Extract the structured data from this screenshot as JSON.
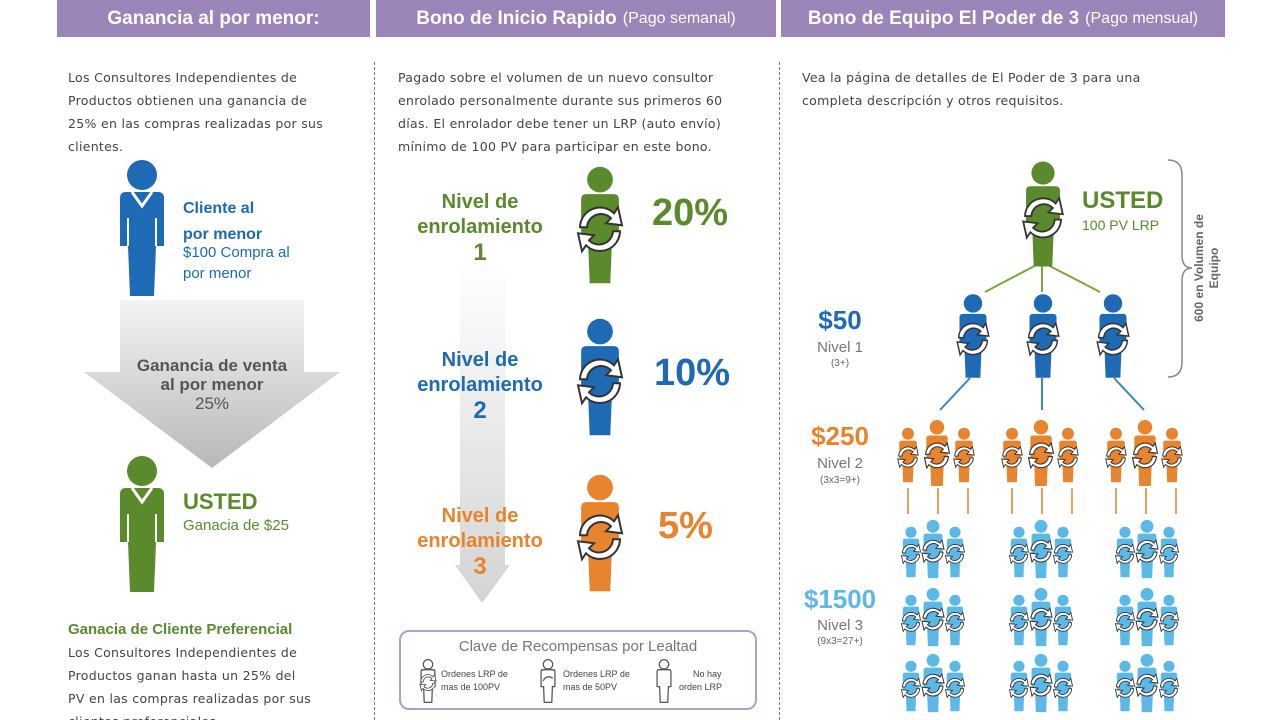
{
  "headers": {
    "col1": {
      "title": "Ganancia al por menor:"
    },
    "col2": {
      "title": "Bono de Inicio Rapido",
      "sub": "(Pago semanal)"
    },
    "col3": {
      "title": "Bono de Equipo El Poder de 3",
      "sub": "(Pago mensual)"
    }
  },
  "col1": {
    "intro": [
      "Los Consultores Independientes de",
      "Productos obtienen una ganancia de",
      "25% en las compras realizadas por sus",
      "clientes."
    ],
    "customer": {
      "title_line1": "Cliente al",
      "title_line2": "por menor",
      "detail_line1": "$100 Compra al",
      "detail_line2": "por menor"
    },
    "arrow": {
      "line1": "Ganancia de venta",
      "line2": "al por menor",
      "line3": "25%"
    },
    "you": {
      "title": "USTED",
      "detail": "Ganacia de $25"
    },
    "preferred": {
      "title": "Ganacia de Cliente Preferencial",
      "lines": [
        "Los Consultores Independientes de",
        "Productos ganan hasta un 25% del",
        "PV en las compras realizadas por sus",
        "clientes preferenciales."
      ]
    }
  },
  "col2": {
    "intro": [
      "Pagado sobre el volumen de un nuevo consultor",
      "enrolado personalmente durante sus primeros 60",
      "días. El enrolador debe tener un LRP (auto envío)",
      "mínimo de 100 PV para participar en este bono."
    ],
    "levels": [
      {
        "line1": "Nivel de",
        "line2": "enrolamiento",
        "num": "1",
        "pct": "20%",
        "color": "#5a8a2c"
      },
      {
        "line1": "Nivel de",
        "line2": "enrolamiento",
        "num": "2",
        "pct": "10%",
        "color": "#1e6ab4"
      },
      {
        "line1": "Nivel de",
        "line2": "enrolamiento",
        "num": "3",
        "pct": "5%",
        "color": "#e8832e"
      }
    ],
    "legend": {
      "title": "Clave de Recompensas por Lealtad",
      "items": [
        {
          "line1": "Ordenes LRP de",
          "line2": "mas de 100PV"
        },
        {
          "line1": "Ordenes LRP de",
          "line2": "mas de 50PV"
        },
        {
          "line1": "No hay",
          "line2": "orden LRP"
        }
      ]
    }
  },
  "col3": {
    "intro": [
      "Vea la página de detalles de El Poder de 3 para una",
      "completa descripción y otros requisitos."
    ],
    "you": {
      "title": "USTED",
      "detail": "100 PV LRP"
    },
    "bracket_label_line1": "600 en Volumen de",
    "bracket_label_line2": "Equipo",
    "levels": [
      {
        "amount": "$50",
        "name": "Nivel 1",
        "note": "(3+)",
        "color": "#1e6ab4"
      },
      {
        "amount": "$250",
        "name": "Nivel 2",
        "note": "(3x3=9+)",
        "color": "#e8832e"
      },
      {
        "amount": "$1500",
        "name": "Nivel 3",
        "note": "(9x3=27+)",
        "color": "#5cb8e6"
      }
    ]
  },
  "colors": {
    "purple": "#9b84b7",
    "green": "#5a8a2c",
    "blue": "#1e6ab4",
    "orange": "#e8832e",
    "light_blue": "#5cb8e6"
  }
}
